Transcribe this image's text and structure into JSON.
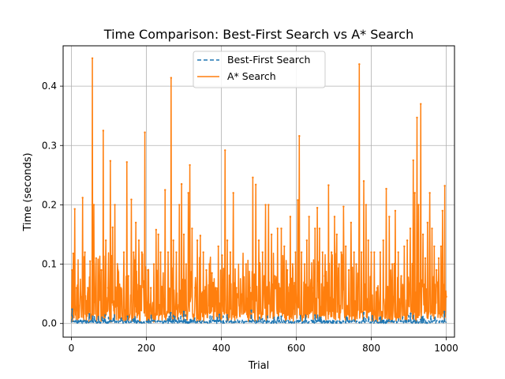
{
  "chart_data": {
    "type": "line",
    "title": "Time Comparison: Best-First Search vs A* Search",
    "xlabel": "Trial",
    "ylabel": "Time (seconds)",
    "xlim": [
      -22,
      1022
    ],
    "ylim": [
      -0.023,
      0.468
    ],
    "xticks": [
      0,
      200,
      400,
      600,
      800,
      1000
    ],
    "yticks": [
      0.0,
      0.1,
      0.2,
      0.3,
      0.4
    ],
    "ytick_labels": [
      "0.0",
      "0.1",
      "0.2",
      "0.3",
      "0.4"
    ],
    "grid": true,
    "legend_position": "top-center",
    "colors": {
      "best_first": "#1f77b4",
      "astar": "#ff7f0e",
      "grid": "#b0b0b0"
    },
    "series": [
      {
        "name": "Best-First Search",
        "style": "dashed",
        "baseline": 0.003,
        "peaks": [
          [
            2,
            0.024
          ],
          [
            48,
            0.016
          ],
          [
            150,
            0.012
          ],
          [
            265,
            0.018
          ],
          [
            300,
            0.02
          ],
          [
            395,
            0.015
          ],
          [
            480,
            0.022
          ],
          [
            560,
            0.012
          ],
          [
            650,
            0.014
          ],
          [
            780,
            0.018
          ],
          [
            905,
            0.017
          ],
          [
            995,
            0.02
          ]
        ]
      },
      {
        "name": "A* Search",
        "style": "solid",
        "peaks": [
          [
            2,
            0.09
          ],
          [
            5,
            0.118
          ],
          [
            9,
            0.193
          ],
          [
            14,
            0.06
          ],
          [
            20,
            0.03
          ],
          [
            26,
            0.045
          ],
          [
            30,
            0.212
          ],
          [
            36,
            0.12
          ],
          [
            44,
            0.06
          ],
          [
            50,
            0.105
          ],
          [
            56,
            0.447
          ],
          [
            60,
            0.2
          ],
          [
            66,
            0.11
          ],
          [
            74,
            0.06
          ],
          [
            80,
            0.09
          ],
          [
            85,
            0.325
          ],
          [
            92,
            0.14
          ],
          [
            98,
            0.06
          ],
          [
            104,
            0.274
          ],
          [
            110,
            0.162
          ],
          [
            116,
            0.2
          ],
          [
            124,
            0.09
          ],
          [
            132,
            0.06
          ],
          [
            140,
            0.12
          ],
          [
            148,
            0.272
          ],
          [
            152,
            0.08
          ],
          [
            160,
            0.209
          ],
          [
            166,
            0.12
          ],
          [
            172,
            0.17
          ],
          [
            180,
            0.14
          ],
          [
            188,
            0.12
          ],
          [
            196,
            0.322
          ],
          [
            204,
            0.09
          ],
          [
            212,
            0.06
          ],
          [
            220,
            0.1
          ],
          [
            226,
            0.158
          ],
          [
            232,
            0.15
          ],
          [
            238,
            0.12
          ],
          [
            244,
            0.06
          ],
          [
            250,
            0.225
          ],
          [
            258,
            0.12
          ],
          [
            266,
            0.414
          ],
          [
            272,
            0.14
          ],
          [
            280,
            0.12
          ],
          [
            288,
            0.2
          ],
          [
            294,
            0.235
          ],
          [
            300,
            0.15
          ],
          [
            306,
            0.1
          ],
          [
            312,
            0.22
          ],
          [
            316,
            0.267
          ],
          [
            322,
            0.16
          ],
          [
            330,
            0.06
          ],
          [
            336,
            0.14
          ],
          [
            344,
            0.148
          ],
          [
            352,
            0.12
          ],
          [
            360,
            0.09
          ],
          [
            368,
            0.1
          ],
          [
            375,
            0.085
          ],
          [
            385,
            0.06
          ],
          [
            392,
            0.13
          ],
          [
            402,
            0.115
          ],
          [
            410,
            0.292
          ],
          [
            416,
            0.14
          ],
          [
            424,
            0.12
          ],
          [
            432,
            0.22
          ],
          [
            440,
            0.06
          ],
          [
            448,
            0.03
          ],
          [
            456,
            0.05
          ],
          [
            466,
            0.1
          ],
          [
            476,
            0.06
          ],
          [
            484,
            0.246
          ],
          [
            492,
            0.234
          ],
          [
            500,
            0.14
          ],
          [
            510,
            0.12
          ],
          [
            518,
            0.2
          ],
          [
            526,
            0.2
          ],
          [
            534,
            0.15
          ],
          [
            542,
            0.08
          ],
          [
            550,
            0.16
          ],
          [
            560,
            0.16
          ],
          [
            568,
            0.13
          ],
          [
            576,
            0.09
          ],
          [
            584,
            0.18
          ],
          [
            590,
            0.1
          ],
          [
            598,
            0.12
          ],
          [
            604,
            0.208
          ],
          [
            608,
            0.316
          ],
          [
            614,
            0.12
          ],
          [
            622,
            0.1
          ],
          [
            628,
            0.14
          ],
          [
            634,
            0.18
          ],
          [
            642,
            0.06
          ],
          [
            650,
            0.16
          ],
          [
            656,
            0.195
          ],
          [
            662,
            0.16
          ],
          [
            670,
            0.12
          ],
          [
            676,
            0.08
          ],
          [
            686,
            0.233
          ],
          [
            694,
            0.12
          ],
          [
            702,
            0.18
          ],
          [
            708,
            0.15
          ],
          [
            714,
            0.1
          ],
          [
            720,
            0.12
          ],
          [
            726,
            0.197
          ],
          [
            732,
            0.13
          ],
          [
            740,
            0.09
          ],
          [
            746,
            0.17
          ],
          [
            754,
            0.12
          ],
          [
            760,
            0.1
          ],
          [
            766,
            0.08
          ],
          [
            768,
            0.437
          ],
          [
            774,
            0.12
          ],
          [
            780,
            0.24
          ],
          [
            786,
            0.2
          ],
          [
            792,
            0.14
          ],
          [
            800,
            0.12
          ],
          [
            808,
            0.12
          ],
          [
            816,
            0.06
          ],
          [
            824,
            0.12
          ],
          [
            832,
            0.14
          ],
          [
            840,
            0.227
          ],
          [
            848,
            0.18
          ],
          [
            856,
            0.1
          ],
          [
            864,
            0.19
          ],
          [
            872,
            0.12
          ],
          [
            880,
            0.08
          ],
          [
            888,
            0.13
          ],
          [
            896,
            0.14
          ],
          [
            904,
            0.16
          ],
          [
            912,
            0.275
          ],
          [
            916,
            0.22
          ],
          [
            922,
            0.347
          ],
          [
            926,
            0.2
          ],
          [
            932,
            0.37
          ],
          [
            938,
            0.15
          ],
          [
            944,
            0.11
          ],
          [
            950,
            0.17
          ],
          [
            956,
            0.22
          ],
          [
            962,
            0.16
          ],
          [
            968,
            0.13
          ],
          [
            974,
            0.09
          ],
          [
            980,
            0.11
          ],
          [
            986,
            0.13
          ],
          [
            990,
            0.19
          ],
          [
            996,
            0.232
          ],
          [
            1000,
            0.045
          ]
        ]
      }
    ]
  }
}
